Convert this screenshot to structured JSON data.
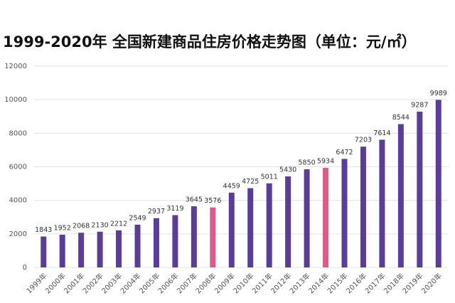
{
  "chart_data": {
    "type": "bar",
    "title": "1999-2020年 全国新建商品住房价格走势图（单位：元/㎡）",
    "categories": [
      "1999年",
      "2000年",
      "2001年",
      "2002年",
      "2003年",
      "2004年",
      "2005年",
      "2006年",
      "2007年",
      "2008年",
      "2009年",
      "2010年",
      "2011年",
      "2012年",
      "2013年",
      "2014年",
      "2015年",
      "2016年",
      "2017年",
      "2018年",
      "2019年",
      "2020年"
    ],
    "values": [
      1843,
      1952,
      2068,
      2130,
      2212,
      2549,
      2937,
      3119,
      3645,
      3576,
      4459,
      4725,
      5011,
      5430,
      5850,
      5934,
      6472,
      7203,
      7614,
      8544,
      9287,
      9989
    ],
    "colors": [
      "#5a3d98",
      "#5a3d98",
      "#5a3d98",
      "#5a3d98",
      "#5a3d98",
      "#5a3d98",
      "#5a3d98",
      "#5a3d98",
      "#5a3d98",
      "#e0598b",
      "#5a3d98",
      "#5a3d98",
      "#5a3d98",
      "#5a3d98",
      "#5a3d98",
      "#e0598b",
      "#5a3d98",
      "#5a3d98",
      "#5a3d98",
      "#5a3d98",
      "#5a3d98",
      "#5a3d98"
    ],
    "ylim": [
      0,
      12000
    ],
    "yticks": [
      0,
      2000,
      4000,
      6000,
      8000,
      10000,
      12000
    ],
    "grid": true
  }
}
